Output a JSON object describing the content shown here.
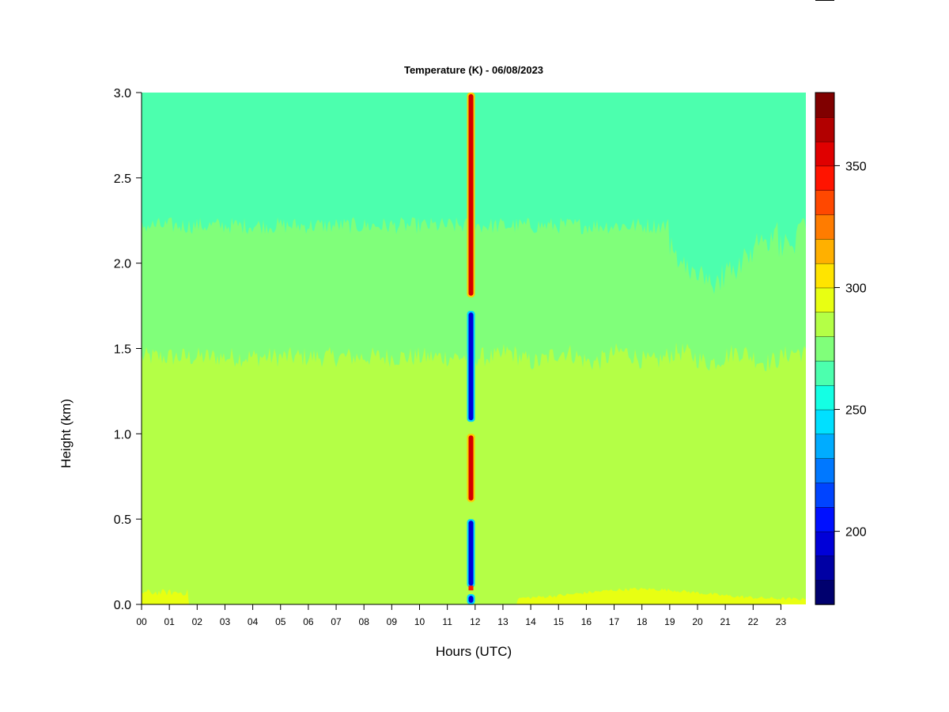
{
  "chart_data": {
    "type": "heatmap",
    "title": "Temperature (K) - 06/08/2023",
    "xlabel": "Hours (UTC)",
    "ylabel": "Height (km)",
    "xlim": [
      0,
      24
    ],
    "ylim": [
      0.0,
      3.0
    ],
    "x_tick_labels": [
      "00",
      "01",
      "02",
      "03",
      "04",
      "05",
      "06",
      "07",
      "08",
      "09",
      "10",
      "11",
      "12",
      "13",
      "14",
      "15",
      "16",
      "17",
      "18",
      "19",
      "20",
      "21",
      "22",
      "23"
    ],
    "y_ticks": [
      0.0,
      0.5,
      1.0,
      1.5,
      2.0,
      2.5,
      3.0
    ],
    "y_tick_labels": [
      "0.0",
      "0.5",
      "1.0",
      "1.5",
      "2.0",
      "2.5",
      "3.0"
    ],
    "colorbar": {
      "range": [
        170,
        380
      ],
      "tick_values": [
        200,
        250,
        300,
        350
      ],
      "tick_labels": [
        "200",
        "250",
        "300",
        "350"
      ],
      "level_colors": [
        "#00006e",
        "#0000a4",
        "#0000d8",
        "#0010ff",
        "#0044ff",
        "#0078ff",
        "#00acff",
        "#00e0ff",
        "#14ffe4",
        "#4cffae",
        "#80ff7a",
        "#b4ff46",
        "#e8ff12",
        "#ffe400",
        "#ffb000",
        "#ff7c00",
        "#ff4800",
        "#ff1400",
        "#e00000",
        "#b20000",
        "#800000"
      ]
    },
    "layers": [
      {
        "height_range_km": [
          0.0,
          0.08
        ],
        "temperature_K": "295-300",
        "color": "#e8ff12"
      },
      {
        "height_range_km": [
          0.08,
          1.45
        ],
        "temperature_K": "285-295",
        "color": "#b4ff46"
      },
      {
        "height_range_km": [
          1.45,
          2.22
        ],
        "temperature_K": "275-285",
        "color": "#80ff7a"
      },
      {
        "height_range_km": [
          2.22,
          3.0
        ],
        "temperature_K": "265-275",
        "color": "#4cffae"
      }
    ],
    "anomaly": {
      "hour": 11.85,
      "segments": [
        {
          "height_range_km": [
            0.0,
            0.06
          ],
          "temperature_K": "~200",
          "color": "#0000d8"
        },
        {
          "height_range_km": [
            0.1,
            0.5
          ],
          "temperature_K": "~190-200",
          "color": "#0000d8"
        },
        {
          "height_range_km": [
            0.6,
            1.0
          ],
          "temperature_K": "~360",
          "color": "#d40000"
        },
        {
          "height_range_km": [
            1.07,
            1.72
          ],
          "temperature_K": "~190-200",
          "color": "#0000d8"
        },
        {
          "height_range_km": [
            1.8,
            3.0
          ],
          "temperature_K": "~360",
          "color": "#d40000"
        }
      ]
    }
  }
}
